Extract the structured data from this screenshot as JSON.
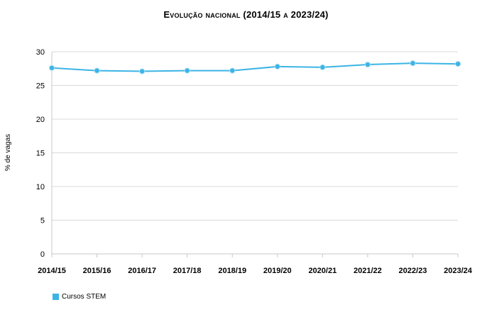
{
  "chart_data": {
    "type": "line",
    "title": "Evolução nacional (2014/15 a 2023/24)",
    "xlabel": "",
    "ylabel": "% de vagas",
    "categories": [
      "2014/15",
      "2015/16",
      "2016/17",
      "2017/18",
      "2018/19",
      "2019/20",
      "2020/21",
      "2021/22",
      "2022/23",
      "2023/24"
    ],
    "series": [
      {
        "name": "Cursos STEM",
        "color": "#3cb4e5",
        "values": [
          27.6,
          27.2,
          27.1,
          27.2,
          27.2,
          27.8,
          27.7,
          28.1,
          28.3,
          28.2
        ]
      }
    ],
    "ylim": [
      0,
      30
    ],
    "yticks": [
      0,
      5,
      10,
      15,
      20,
      25,
      30
    ],
    "grid": true,
    "legend": "bottom-left"
  }
}
